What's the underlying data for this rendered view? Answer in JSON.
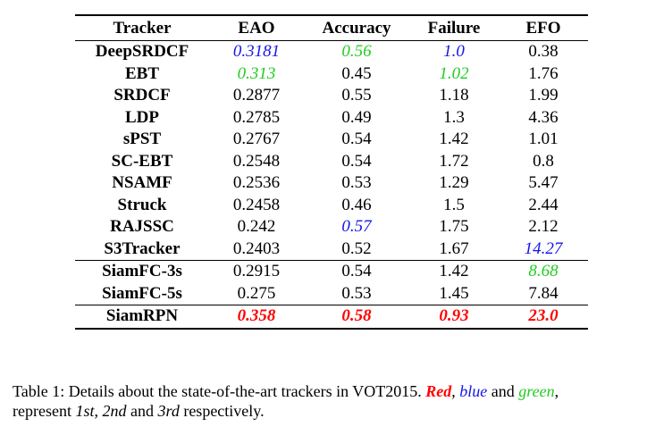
{
  "table": {
    "headers": [
      "Tracker",
      "EAO",
      "Accuracy",
      "Failure",
      "EFO"
    ],
    "groups": [
      [
        {
          "tracker": "DeepSRDCF",
          "cells": [
            {
              "v": "0.3181",
              "c": "blue"
            },
            {
              "v": "0.56",
              "c": "green"
            },
            {
              "v": "1.0",
              "c": "blue"
            },
            {
              "v": "0.38",
              "c": ""
            }
          ]
        },
        {
          "tracker": "EBT",
          "cells": [
            {
              "v": "0.313",
              "c": "green"
            },
            {
              "v": "0.45",
              "c": ""
            },
            {
              "v": "1.02",
              "c": "green"
            },
            {
              "v": "1.76",
              "c": ""
            }
          ]
        },
        {
          "tracker": "SRDCF",
          "cells": [
            {
              "v": "0.2877",
              "c": ""
            },
            {
              "v": "0.55",
              "c": ""
            },
            {
              "v": "1.18",
              "c": ""
            },
            {
              "v": "1.99",
              "c": ""
            }
          ]
        },
        {
          "tracker": "LDP",
          "cells": [
            {
              "v": "0.2785",
              "c": ""
            },
            {
              "v": "0.49",
              "c": ""
            },
            {
              "v": "1.3",
              "c": ""
            },
            {
              "v": "4.36",
              "c": ""
            }
          ]
        },
        {
          "tracker": "sPST",
          "cells": [
            {
              "v": "0.2767",
              "c": ""
            },
            {
              "v": "0.54",
              "c": ""
            },
            {
              "v": "1.42",
              "c": ""
            },
            {
              "v": "1.01",
              "c": ""
            }
          ]
        },
        {
          "tracker": "SC-EBT",
          "cells": [
            {
              "v": "0.2548",
              "c": ""
            },
            {
              "v": "0.54",
              "c": ""
            },
            {
              "v": "1.72",
              "c": ""
            },
            {
              "v": "0.8",
              "c": ""
            }
          ]
        },
        {
          "tracker": "NSAMF",
          "cells": [
            {
              "v": "0.2536",
              "c": ""
            },
            {
              "v": "0.53",
              "c": ""
            },
            {
              "v": "1.29",
              "c": ""
            },
            {
              "v": "5.47",
              "c": ""
            }
          ]
        },
        {
          "tracker": "Struck",
          "cells": [
            {
              "v": "0.2458",
              "c": ""
            },
            {
              "v": "0.46",
              "c": ""
            },
            {
              "v": "1.5",
              "c": ""
            },
            {
              "v": "2.44",
              "c": ""
            }
          ]
        },
        {
          "tracker": "RAJSSC",
          "cells": [
            {
              "v": "0.242",
              "c": ""
            },
            {
              "v": "0.57",
              "c": "blue"
            },
            {
              "v": "1.75",
              "c": ""
            },
            {
              "v": "2.12",
              "c": ""
            }
          ]
        },
        {
          "tracker": "S3Tracker",
          "cells": [
            {
              "v": "0.2403",
              "c": ""
            },
            {
              "v": "0.52",
              "c": ""
            },
            {
              "v": "1.67",
              "c": ""
            },
            {
              "v": "14.27",
              "c": "blue"
            }
          ]
        }
      ],
      [
        {
          "tracker": "SiamFC-3s",
          "cells": [
            {
              "v": "0.2915",
              "c": ""
            },
            {
              "v": "0.54",
              "c": ""
            },
            {
              "v": "1.42",
              "c": ""
            },
            {
              "v": "8.68",
              "c": "green"
            }
          ]
        },
        {
          "tracker": "SiamFC-5s",
          "cells": [
            {
              "v": "0.275",
              "c": ""
            },
            {
              "v": "0.53",
              "c": ""
            },
            {
              "v": "1.45",
              "c": ""
            },
            {
              "v": "7.84",
              "c": ""
            }
          ]
        }
      ],
      [
        {
          "tracker": "SiamRPN",
          "cells": [
            {
              "v": "0.358",
              "c": "red"
            },
            {
              "v": "0.58",
              "c": "red"
            },
            {
              "v": "0.93",
              "c": "red"
            },
            {
              "v": "23.0",
              "c": "red"
            }
          ]
        }
      ]
    ]
  },
  "caption": {
    "prefix": "Table 1: Details about the state-of-the-art trackers in VOT2015. ",
    "red_word": "Red",
    "sep1": ", ",
    "blue_word": "blue",
    "sep2": " and ",
    "green_word": "green",
    "sep3": ",",
    "line2_prefix": "represent ",
    "first": "1st",
    "sep4": ", ",
    "second": "2nd",
    "sep5": " and ",
    "third": "3rd",
    "suffix": " respectively."
  },
  "colors": {
    "red": "#ff0000",
    "blue": "#1515e6",
    "green": "#22cc22"
  }
}
